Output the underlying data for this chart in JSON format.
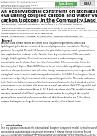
{
  "bg_color": "#ffffff",
  "header_lines": [
    "Biogeosciences, 12, 3254–3364, 2014",
    "www.biogeosciences.net/12/3254/2014/",
    "doi: 10.5194/bg-12-3254-2014",
    "© Author(s) 2014. CC Attribution 3.0 License."
  ],
  "journal_label": "Biogeosciences",
  "journal_label_color": "#5aaa5a",
  "title": "An observational constraint on stomatal function in forests:\nevaluating coupled carbon and water vapor exchange with\ncarbon isotopes in the Community Land Model (CLM4.5)",
  "title_fontsize": 3.8,
  "authors": "Rolf Knohl,¹ Markus Reichstein,² Christoph Nies,³ James Randerson,² Ulrich Kramer,² John C. Lin,⁴ and Arnold Knohl¹",
  "authors_fontsize": 2.2,
  "affiliations": [
    "¹ Bioclimatology, University of Göttingen, Büssgenweg 2, 37077 Göttingen, Germany",
    "² Department of Global Ecology, Carnegie Institution for Science, 260 Panama Street, Stanford, CA 94305, USA",
    "³ Max Planck Institute for Biogeochemistry, Hans-Knöll-Straße 10, 07745 Jena, Germany",
    "⁴ Department of Atmospheric Sciences, University of Utah, 135 South 1460 East, Salt Lake City, UT 84112, USA"
  ],
  "affiliations_fontsize": 1.7,
  "correspondence": "Correspondence to: Rolf Knohl (rolf.knohl@bioclim.de)",
  "received": "Received: 18 March 2014 – Discussion started: 23 March 2014",
  "revised": "Revised: 28 August 2014 – Accepted: 28 August 2014 – Published: 23 September 2014",
  "abstract_title": "Abstract",
  "abstract_text": "Abstract: Land surface models are central tools in quantifying terrestrial carbon and hydrological cycles but are constrained from multiple parameter uncertainties. One key parameter for coupled CO₂ and H₂O fluxes is the potential to improve model representation of how coupled carbon and water cycles function have key uncertainties of CO₂ flux models through global vegetation. Essentially, a new constraint of carbon isotope ecology discrimination can be derived from the ratio of intercellular CO₂ concentration (ci) to the Community Earth System Model (ESM) that are forced into model's capability to simulate short-term changes from time-series of carbon isotope measurements in tree ring records. We show-global biome to acquire carbon isotope discrimination (delta13C) from long-term forest measurements (Ap. 14 yr) is consistent with temporal changes in ci/ca. The model calibration to the fact limited discriminations of site-level carbon calibrations for the 1 standard deviation measurements of ca consistent with land surface model simulations (delta13C) is possible and water fluxes are underestimated down by 0.3-4 fold units where ci/ca. This model calibration simulates improved ci/ca 0.5 with systematic overestimates for coupling of the coupled photosynthesis-stomatal conductance model such that the modeled ca are 1.0 but these systems that improve ecology discrimination are based on ci/ca of forest biome.",
  "abstract_fontsize": 1.8,
  "intro_title": "1    Introduction",
  "intro_text": "One key approach to evaluate the observational biosphere component models is that the use of observational carbon isotopes can provide estimates of climate change outcomes. Several previous studies have proposed 13C discrimination was measured in the global land model for biome carbon isotope data discrimination.",
  "section_fontsize": 2.2,
  "text_color": "#111111",
  "header_fontsize": 1.7,
  "open_access_bg": "#5aaa5a",
  "open_access_text": "Open Access",
  "footer_text": "Published by Copernicus Publications on behalf of the European Geosciences Union."
}
